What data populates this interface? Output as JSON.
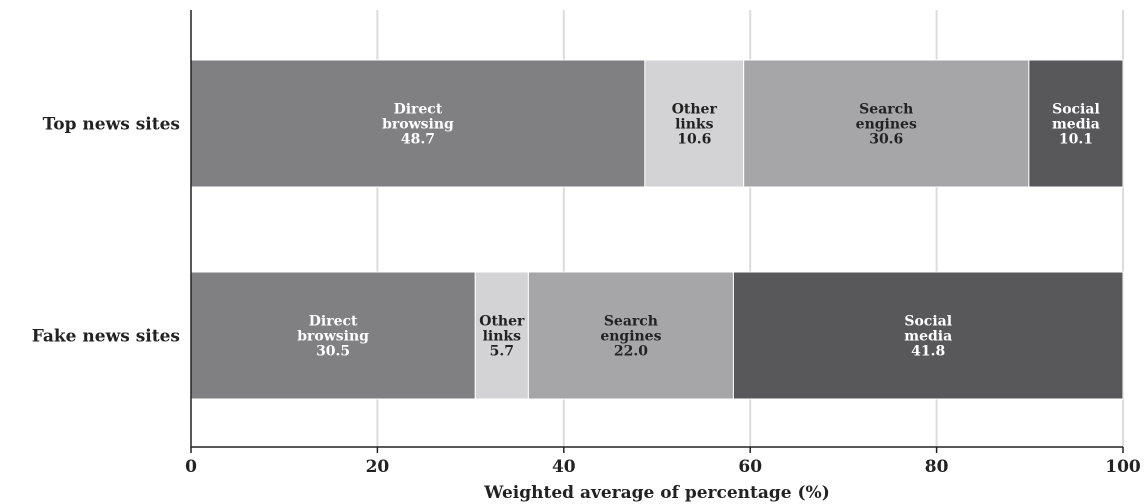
{
  "chart_data": {
    "type": "bar",
    "orientation": "horizontal",
    "stacked": true,
    "categories": [
      "Top news sites",
      "Fake news sites"
    ],
    "series": [
      {
        "name": "Direct browsing",
        "label_lines": [
          "Direct",
          "browsing"
        ],
        "values": [
          48.7,
          30.5
        ],
        "color": "#808083",
        "text_color": "#ffffff"
      },
      {
        "name": "Other links",
        "label_lines": [
          "Other",
          "links"
        ],
        "values": [
          10.6,
          5.7
        ],
        "color": "#d3d3d5",
        "text_color": "#222222"
      },
      {
        "name": "Search engines",
        "label_lines": [
          "Search",
          "engines"
        ],
        "values": [
          30.6,
          22.0
        ],
        "color": "#a6a6a8",
        "text_color": "#222222"
      },
      {
        "name": "Social media",
        "label_lines": [
          "Social",
          "media"
        ],
        "values": [
          10.1,
          41.8
        ],
        "color": "#58585a",
        "text_color": "#ffffff"
      }
    ],
    "value_labels": [
      [
        "48.7",
        "10.6",
        "30.6",
        "10.1"
      ],
      [
        "30.5",
        "5.7",
        "22.0",
        "41.8"
      ]
    ],
    "xlabel": "Weighted average of percentage (%)",
    "ylabel": "",
    "xlim": [
      0,
      100
    ],
    "xticks": [
      "0",
      "20",
      "40",
      "60",
      "80",
      "100"
    ],
    "grid": true
  }
}
